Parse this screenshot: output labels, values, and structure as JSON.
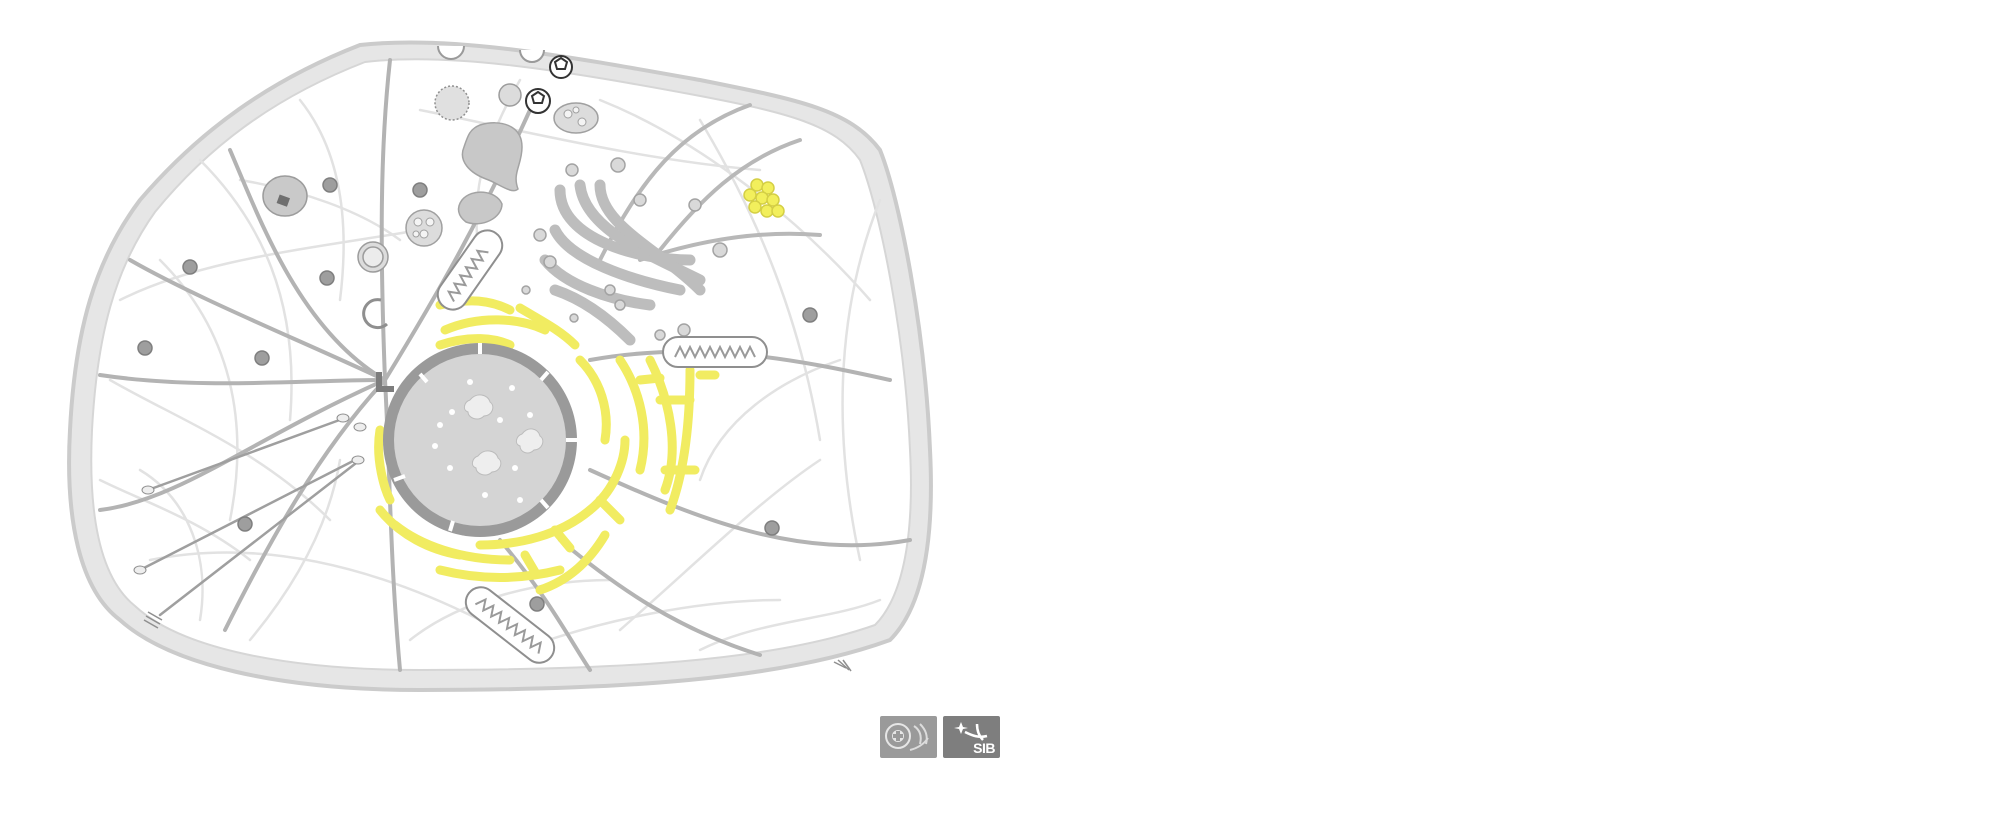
{
  "figure": {
    "kind": "subcellular localization diagram",
    "highlighted_compartments": [
      "endoplasmic-reticulum",
      "lipid-droplet"
    ],
    "colors": {
      "highlight": "#f2ef5c",
      "highlight_stroke": "#d9d44a",
      "membrane": "#c9c9c9",
      "organelle_fill": "#d8d8d8",
      "organelle_stroke": "#a3a3a3",
      "cytoskeleton": "#a9a9a9",
      "cytoskeleton_light": "#e0e0e0",
      "nucleus_fill": "#cfcfcf",
      "nuclear_envelope": "#8c8c8c"
    }
  },
  "logos": {
    "sib_text": "SIB",
    "left_logo_icon": "swissprot-cell-icon",
    "right_logo_icon": "sib-star-icon"
  }
}
